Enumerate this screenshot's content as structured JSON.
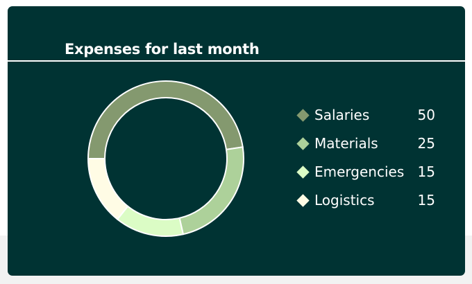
{
  "card": {
    "title": "Expenses for last month"
  },
  "chart_data": {
    "type": "pie",
    "variant": "donut",
    "title": "Expenses for last month",
    "categories": [
      "Salaries",
      "Materials",
      "Emergencies",
      "Logistics"
    ],
    "values": [
      50,
      25,
      15,
      15
    ],
    "colors": [
      "#84996f",
      "#add19a",
      "#dbfcc5",
      "#fffce5"
    ],
    "legend_position": "right"
  },
  "legend": [
    {
      "label": "Salaries",
      "value": "50",
      "color": "#84996f"
    },
    {
      "label": "Materials",
      "value": "25",
      "color": "#add19a"
    },
    {
      "label": "Emergencies",
      "value": "15",
      "color": "#dbfcc5"
    },
    {
      "label": "Logistics",
      "value": "15",
      "color": "#fffce5"
    }
  ]
}
